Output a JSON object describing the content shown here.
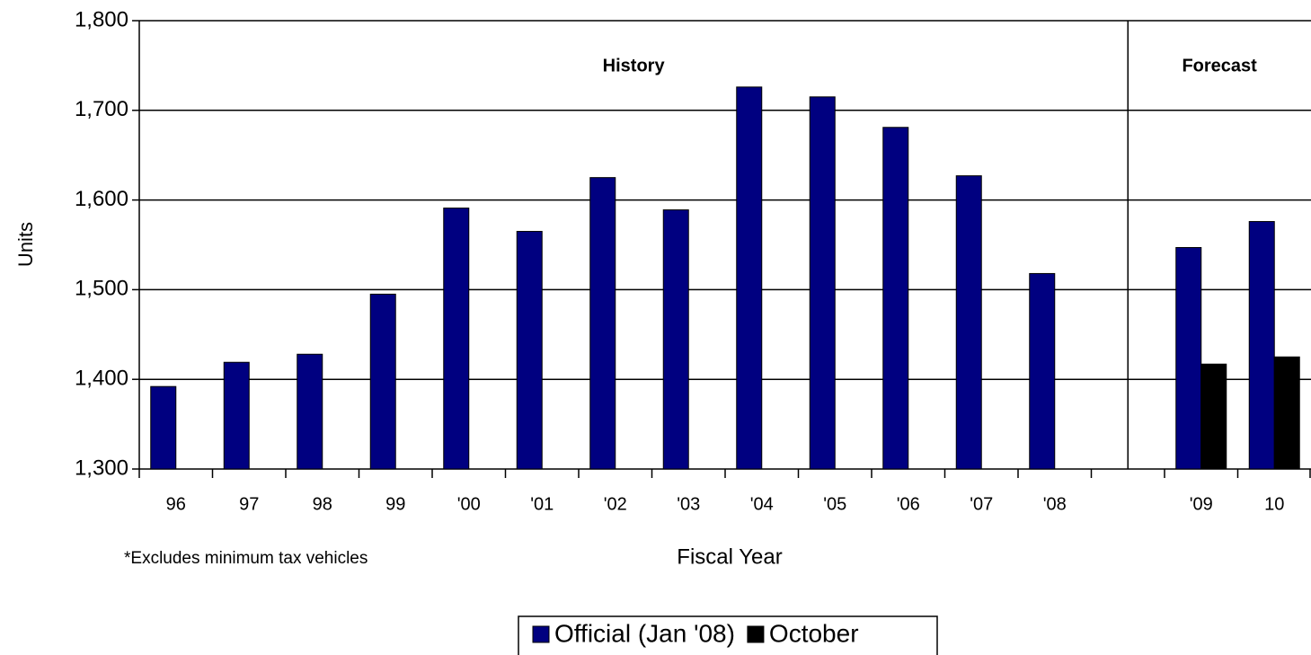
{
  "chart_data": {
    "type": "bar",
    "x_label": "Fiscal Year",
    "y_label": "Units",
    "annotations": [
      "History",
      "Forecast"
    ],
    "footnote": "*Excludes minimum tax vehicles",
    "categories": [
      "96",
      "97",
      "98",
      "99",
      "'00",
      "'01",
      "'02",
      "'03",
      "'04",
      "'05",
      "'06",
      "'07",
      "'08",
      null,
      "'09",
      "10"
    ],
    "series": [
      {
        "name": "Official (Jan '08)",
        "color": "#000080",
        "values": [
          1392,
          1419,
          1428,
          1495,
          1591,
          1565,
          1625,
          1589,
          1726,
          1715,
          1681,
          1627,
          1518,
          null,
          1547,
          1576
        ]
      },
      {
        "name": "October",
        "color": "#000000",
        "values": [
          null,
          null,
          null,
          null,
          null,
          null,
          null,
          null,
          null,
          null,
          null,
          null,
          null,
          null,
          1417,
          1425
        ]
      }
    ],
    "ylim": [
      1300,
      1800
    ],
    "yticks": [
      {
        "value": 1300,
        "label": "1,300"
      },
      {
        "value": 1400,
        "label": "1,400"
      },
      {
        "value": 1500,
        "label": "1,500"
      },
      {
        "value": 1600,
        "label": "1,600"
      },
      {
        "value": 1700,
        "label": "1,700"
      },
      {
        "value": 1800,
        "label": "1,800"
      }
    ],
    "grid": true,
    "legend": "bottom"
  }
}
